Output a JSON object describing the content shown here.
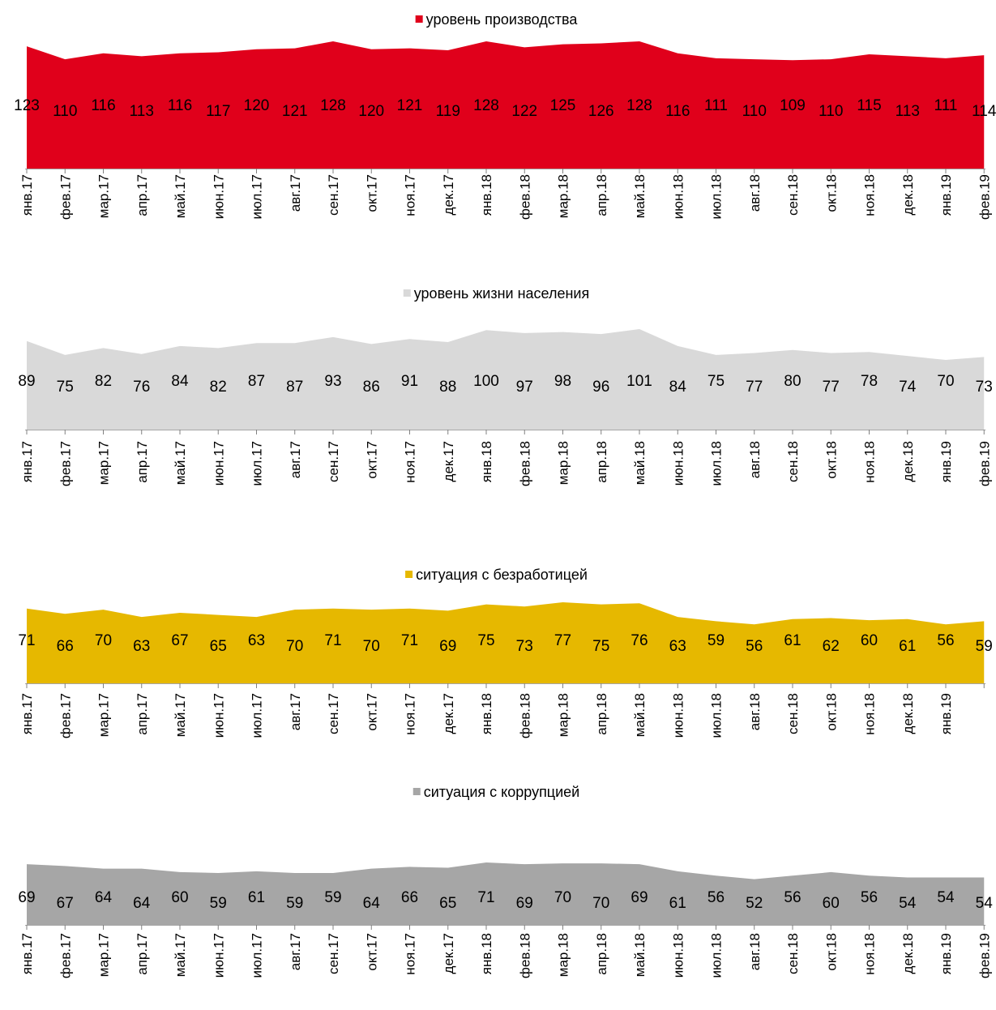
{
  "chart_data": [
    {
      "type": "area",
      "series": [
        {
          "name": "уровень производства",
          "color": "#e0001b",
          "values": [
            123,
            110,
            116,
            113,
            116,
            117,
            120,
            121,
            128,
            120,
            121,
            119,
            128,
            122,
            125,
            126,
            128,
            116,
            111,
            110,
            109,
            110,
            115,
            113,
            111,
            114
          ]
        }
      ],
      "categories": [
        "янв.17",
        "фев.17",
        "мар.17",
        "апр.17",
        "май.17",
        "июн.17",
        "июл.17",
        "авг.17",
        "сен.17",
        "окт.17",
        "ноя.17",
        "дек.17",
        "янв.18",
        "фев.18",
        "мар.18",
        "апр.18",
        "май.18",
        "июн.18",
        "июл.18",
        "авг.18",
        "сен.18",
        "окт.18",
        "ноя.18",
        "дек.18",
        "янв.19",
        "фев.19"
      ],
      "legend": "top-center",
      "grid": false
    },
    {
      "type": "area",
      "series": [
        {
          "name": "уровень жизни населения",
          "color": "#d9d9d9",
          "values": [
            89,
            75,
            82,
            76,
            84,
            82,
            87,
            87,
            93,
            86,
            91,
            88,
            100,
            97,
            98,
            96,
            101,
            84,
            75,
            77,
            80,
            77,
            78,
            74,
            70,
            73
          ]
        }
      ],
      "categories": [
        "янв.17",
        "фев.17",
        "мар.17",
        "апр.17",
        "май.17",
        "июн.17",
        "июл.17",
        "авг.17",
        "сен.17",
        "окт.17",
        "ноя.17",
        "дек.17",
        "янв.18",
        "фев.18",
        "мар.18",
        "апр.18",
        "май.18",
        "июн.18",
        "июл.18",
        "авг.18",
        "сен.18",
        "окт.18",
        "ноя.18",
        "дек.18",
        "янв.19",
        "фев.19"
      ],
      "legend": "top-center",
      "grid": false
    },
    {
      "type": "area",
      "series": [
        {
          "name": "ситуация с безработицей",
          "color": "#e6b800",
          "values": [
            71,
            66,
            70,
            63,
            67,
            65,
            63,
            70,
            71,
            70,
            71,
            69,
            75,
            73,
            77,
            75,
            76,
            63,
            59,
            56,
            61,
            62,
            60,
            61,
            56,
            59
          ]
        }
      ],
      "categories": [
        "янв.17",
        "фев.17",
        "мар.17",
        "апр.17",
        "май.17",
        "июн.17",
        "июл.17",
        "авг.17",
        "сен.17",
        "окт.17",
        "ноя.17",
        "дек.17",
        "янв.18",
        "фев.18",
        "мар.18",
        "апр.18",
        "май.18",
        "июн.18",
        "июл.18",
        "авг.18",
        "сен.18",
        "окт.18",
        "ноя.18",
        "дек.18",
        "янв.19",
        ""
      ],
      "legend": "top-center",
      "grid": false
    },
    {
      "type": "area",
      "series": [
        {
          "name": "ситуация с коррупцией",
          "color": "#a6a6a6",
          "values": [
            69,
            67,
            64,
            64,
            60,
            59,
            61,
            59,
            59,
            64,
            66,
            65,
            71,
            69,
            70,
            70,
            69,
            61,
            56,
            52,
            56,
            60,
            56,
            54,
            54,
            54
          ]
        }
      ],
      "categories": [
        "янв.17",
        "фев.17",
        "мар.17",
        "апр.17",
        "май.17",
        "июн.17",
        "июл.17",
        "авг.17",
        "сен.17",
        "окт.17",
        "ноя.17",
        "дек.17",
        "янв.18",
        "фев.18",
        "мар.18",
        "апр.18",
        "май.18",
        "июн.18",
        "июл.18",
        "авг.18",
        "сен.18",
        "окт.18",
        "ноя.18",
        "дек.18",
        "янв.19",
        "фев.19"
      ],
      "legend": "top-center",
      "grid": false
    }
  ]
}
